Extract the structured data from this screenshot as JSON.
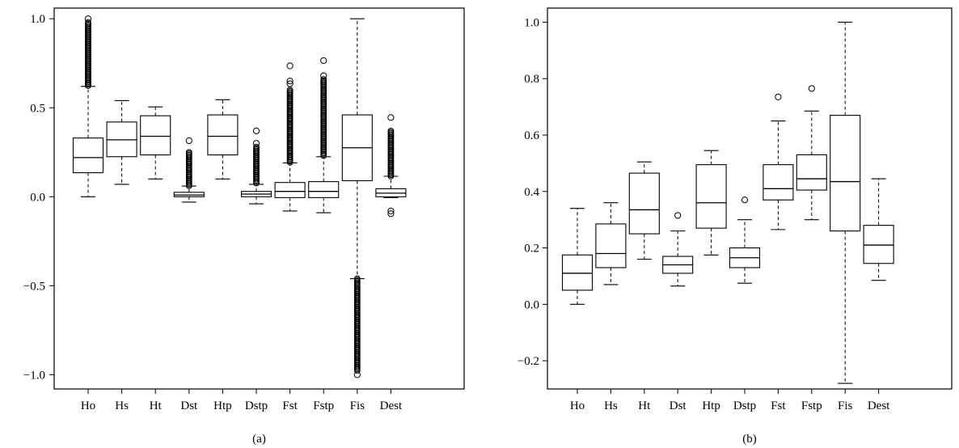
{
  "chart_data": [
    {
      "type": "box",
      "caption": "(a)",
      "categories": [
        "Ho",
        "Hs",
        "Ht",
        "Dst",
        "Htp",
        "Dstp",
        "Fst",
        "Fstp",
        "Fis",
        "Dest"
      ],
      "ylim": [
        -1.08,
        1.06
      ],
      "yticks": [
        -1.0,
        -0.5,
        0.0,
        0.5,
        1.0
      ],
      "ytick_labels": [
        "−1.0",
        "−0.5",
        "0.0",
        "0.5",
        "1.0"
      ],
      "grid": false,
      "boxes": [
        {
          "min": 0.0,
          "q1": 0.135,
          "median": 0.22,
          "q3": 0.33,
          "max": 0.62,
          "outlier_bands": [
            [
              0.62,
              0.98
            ]
          ],
          "outliers": [
            1.0
          ]
        },
        {
          "min": 0.07,
          "q1": 0.225,
          "median": 0.32,
          "q3": 0.42,
          "max": 0.54,
          "outlier_bands": [],
          "outliers": []
        },
        {
          "min": 0.1,
          "q1": 0.235,
          "median": 0.34,
          "q3": 0.455,
          "max": 0.505,
          "outlier_bands": [],
          "outliers": []
        },
        {
          "min": -0.03,
          "q1": 0.0,
          "median": 0.01,
          "q3": 0.025,
          "max": 0.06,
          "outlier_bands": [
            [
              0.06,
              0.25
            ]
          ],
          "outliers": [
            0.315
          ]
        },
        {
          "min": 0.1,
          "q1": 0.235,
          "median": 0.34,
          "q3": 0.46,
          "max": 0.545,
          "outlier_bands": [],
          "outliers": []
        },
        {
          "min": -0.04,
          "q1": 0.0,
          "median": 0.015,
          "q3": 0.03,
          "max": 0.07,
          "outlier_bands": [
            [
              0.07,
              0.28
            ]
          ],
          "outliers": [
            0.3,
            0.37
          ]
        },
        {
          "min": -0.08,
          "q1": -0.005,
          "median": 0.03,
          "q3": 0.08,
          "max": 0.19,
          "outlier_bands": [
            [
              0.19,
              0.6
            ]
          ],
          "outliers": [
            0.635,
            0.65,
            0.735
          ]
        },
        {
          "min": -0.09,
          "q1": -0.005,
          "median": 0.03,
          "q3": 0.085,
          "max": 0.225,
          "outlier_bands": [
            [
              0.225,
              0.66
            ]
          ],
          "outliers": [
            0.68,
            0.765
          ]
        },
        {
          "min": -0.46,
          "q1": 0.09,
          "median": 0.275,
          "q3": 0.46,
          "max": 1.0,
          "outlier_bands": [
            [
              -0.98,
              -0.46
            ]
          ],
          "outliers": [
            -1.0
          ]
        },
        {
          "min": -0.005,
          "q1": 0.0,
          "median": 0.02,
          "q3": 0.045,
          "max": 0.115,
          "outlier_bands": [
            [
              0.115,
              0.37
            ]
          ],
          "outliers": [
            0.445,
            -0.08,
            -0.095
          ]
        }
      ]
    },
    {
      "type": "box",
      "caption": "(b)",
      "categories": [
        "Ho",
        "Hs",
        "Ht",
        "Dst",
        "Htp",
        "Dstp",
        "Fst",
        "Fstp",
        "Fis",
        "Dest"
      ],
      "ylim": [
        -0.3,
        1.05
      ],
      "yticks": [
        -0.2,
        0.0,
        0.2,
        0.4,
        0.6,
        0.8,
        1.0
      ],
      "ytick_labels": [
        "−0.2",
        "0.0",
        "0.2",
        "0.4",
        "0.6",
        "0.8",
        "1.0"
      ],
      "grid": false,
      "boxes": [
        {
          "min": 0.0,
          "q1": 0.05,
          "median": 0.11,
          "q3": 0.175,
          "max": 0.34,
          "outlier_bands": [],
          "outliers": []
        },
        {
          "min": 0.07,
          "q1": 0.13,
          "median": 0.18,
          "q3": 0.285,
          "max": 0.36,
          "outlier_bands": [],
          "outliers": []
        },
        {
          "min": 0.16,
          "q1": 0.25,
          "median": 0.335,
          "q3": 0.465,
          "max": 0.505,
          "outlier_bands": [],
          "outliers": []
        },
        {
          "min": 0.065,
          "q1": 0.11,
          "median": 0.14,
          "q3": 0.17,
          "max": 0.26,
          "outlier_bands": [],
          "outliers": [
            0.315
          ]
        },
        {
          "min": 0.175,
          "q1": 0.27,
          "median": 0.36,
          "q3": 0.495,
          "max": 0.545,
          "outlier_bands": [],
          "outliers": []
        },
        {
          "min": 0.075,
          "q1": 0.13,
          "median": 0.165,
          "q3": 0.2,
          "max": 0.3,
          "outlier_bands": [],
          "outliers": [
            0.37
          ]
        },
        {
          "min": 0.265,
          "q1": 0.37,
          "median": 0.41,
          "q3": 0.495,
          "max": 0.65,
          "outlier_bands": [],
          "outliers": [
            0.735
          ]
        },
        {
          "min": 0.3,
          "q1": 0.405,
          "median": 0.445,
          "q3": 0.53,
          "max": 0.685,
          "outlier_bands": [],
          "outliers": [
            0.765
          ]
        },
        {
          "min": -0.28,
          "q1": 0.26,
          "median": 0.435,
          "q3": 0.67,
          "max": 1.0,
          "outlier_bands": [],
          "outliers": []
        },
        {
          "min": 0.085,
          "q1": 0.145,
          "median": 0.21,
          "q3": 0.28,
          "max": 0.445,
          "outlier_bands": [],
          "outliers": []
        }
      ]
    }
  ]
}
